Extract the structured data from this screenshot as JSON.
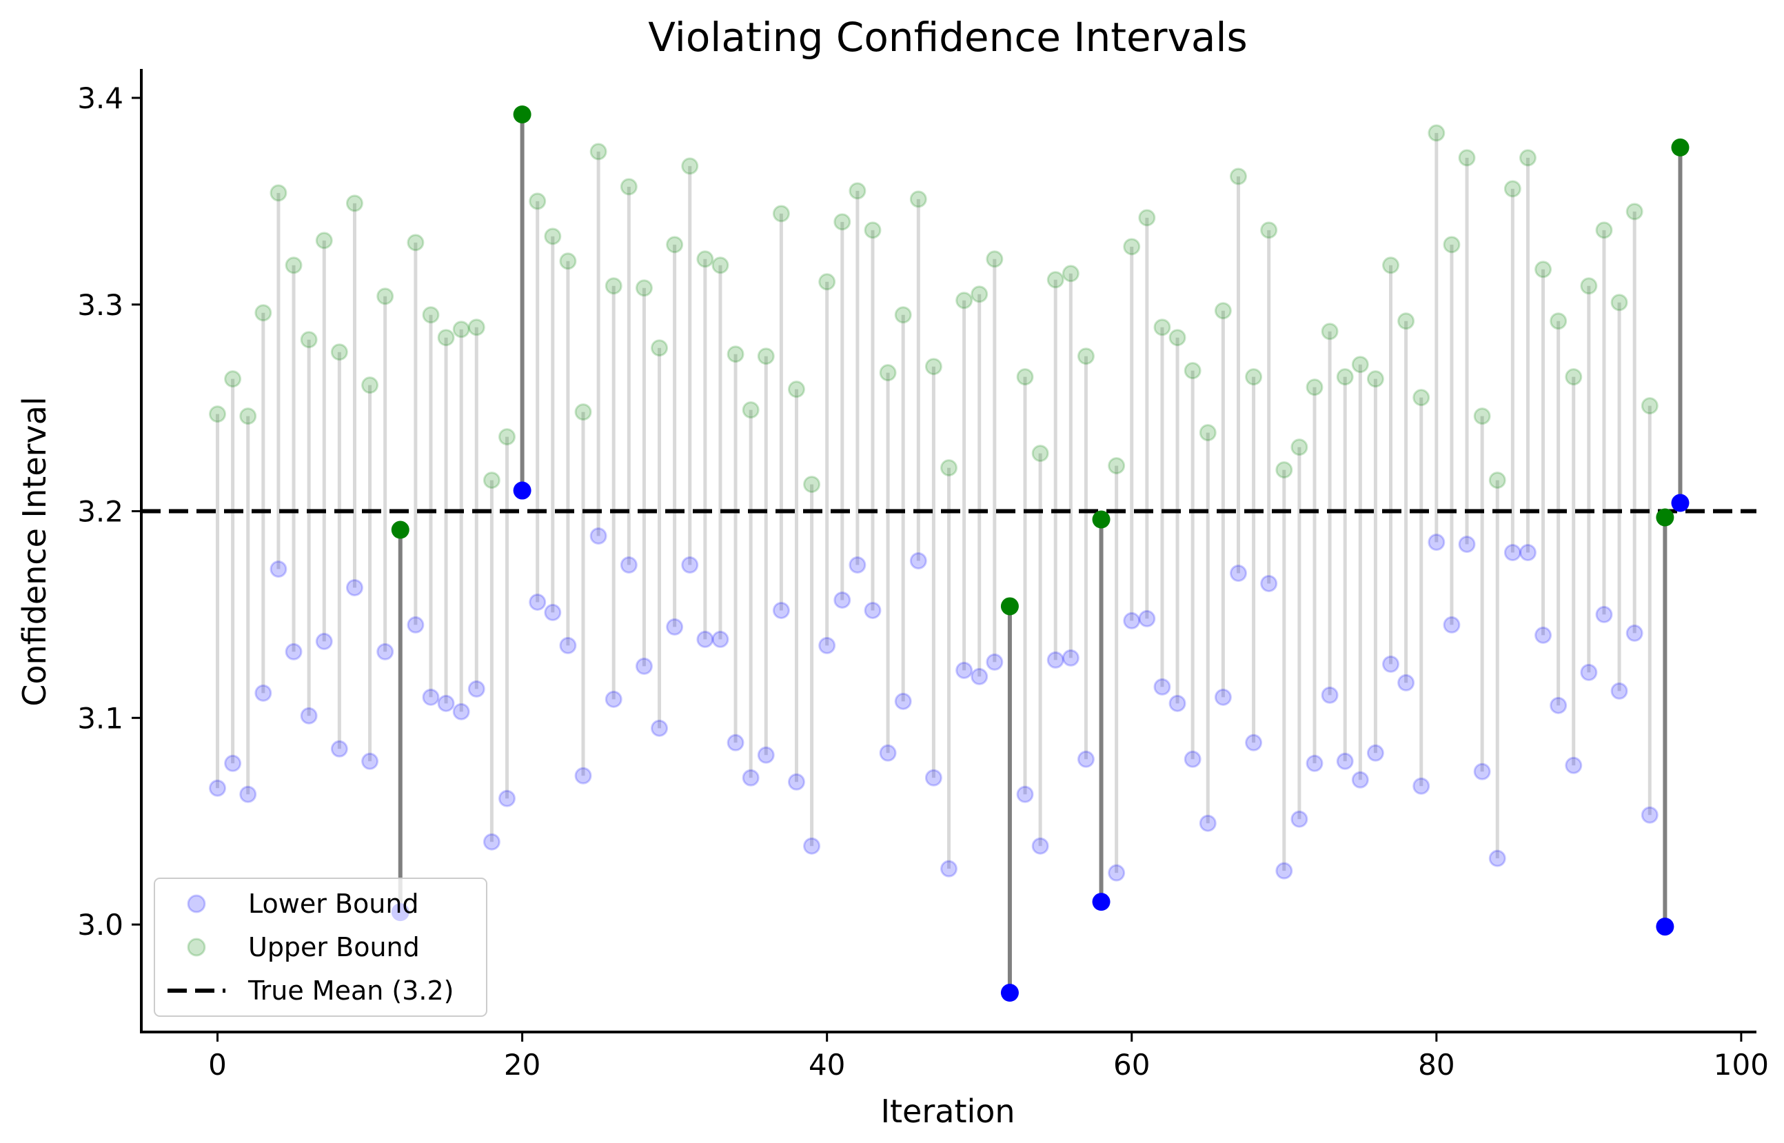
{
  "chart_data": {
    "type": "scatter",
    "title": "Violating Confidence Intervals",
    "xlabel": "Iteration",
    "ylabel": "Confidence Interval",
    "xlim": [
      -5,
      101
    ],
    "ylim": [
      2.948,
      3.414
    ],
    "xticks": [
      0,
      20,
      40,
      60,
      80,
      100
    ],
    "xtick_labels": [
      "0",
      "20",
      "40",
      "60",
      "80",
      "100"
    ],
    "yticks": [
      3.0,
      3.1,
      3.2,
      3.3,
      3.4
    ],
    "ytick_labels": [
      "3.0",
      "3.1",
      "3.2",
      "3.3",
      "3.4"
    ],
    "true_mean": 3.2,
    "grid": false,
    "legend_position": "lower-left",
    "legend": {
      "lower": "Lower Bound",
      "upper": "Upper Bound",
      "mean": "True Mean (3.2)"
    },
    "colors": {
      "lower": "#0000ff",
      "upper": "#008000",
      "mean_line": "#000000",
      "ok_interval": "#d9d9d9",
      "violating_interval": "#808080"
    },
    "violating_iterations": [
      12,
      20,
      52,
      58,
      95,
      96
    ],
    "lower_bounds": [
      3.066,
      3.078,
      3.063,
      3.112,
      3.172,
      3.132,
      3.101,
      3.137,
      3.085,
      3.163,
      3.079,
      3.132,
      3.006,
      3.145,
      3.11,
      3.107,
      3.103,
      3.114,
      3.04,
      3.061,
      3.21,
      3.156,
      3.151,
      3.135,
      3.072,
      3.188,
      3.109,
      3.174,
      3.125,
      3.095,
      3.144,
      3.174,
      3.138,
      3.138,
      3.088,
      3.071,
      3.082,
      3.152,
      3.069,
      3.038,
      3.135,
      3.157,
      3.174,
      3.152,
      3.083,
      3.108,
      3.176,
      3.071,
      3.027,
      3.123,
      3.12,
      3.127,
      2.967,
      3.063,
      3.038,
      3.128,
      3.129,
      3.08,
      3.011,
      3.025,
      3.147,
      3.148,
      3.115,
      3.107,
      3.08,
      3.049,
      3.11,
      3.17,
      3.088,
      3.165,
      3.026,
      3.051,
      3.078,
      3.111,
      3.079,
      3.07,
      3.083,
      3.126,
      3.117,
      3.067,
      3.185,
      3.145,
      3.184,
      3.074,
      3.032,
      3.18,
      3.18,
      3.14,
      3.106,
      3.077,
      3.122,
      3.15,
      3.113,
      3.141,
      3.053,
      2.999,
      3.204
    ],
    "upper_bounds": [
      3.247,
      3.264,
      3.246,
      3.296,
      3.354,
      3.319,
      3.283,
      3.331,
      3.277,
      3.349,
      3.261,
      3.304,
      3.191,
      3.33,
      3.295,
      3.284,
      3.288,
      3.289,
      3.215,
      3.236,
      3.392,
      3.35,
      3.333,
      3.321,
      3.248,
      3.374,
      3.309,
      3.357,
      3.308,
      3.279,
      3.329,
      3.367,
      3.322,
      3.319,
      3.276,
      3.249,
      3.275,
      3.344,
      3.259,
      3.213,
      3.311,
      3.34,
      3.355,
      3.336,
      3.267,
      3.295,
      3.351,
      3.27,
      3.221,
      3.302,
      3.305,
      3.322,
      3.154,
      3.265,
      3.228,
      3.312,
      3.315,
      3.275,
      3.196,
      3.222,
      3.328,
      3.342,
      3.289,
      3.284,
      3.268,
      3.238,
      3.297,
      3.362,
      3.265,
      3.336,
      3.22,
      3.231,
      3.26,
      3.287,
      3.265,
      3.271,
      3.264,
      3.319,
      3.292,
      3.255,
      3.383,
      3.329,
      3.371,
      3.246,
      3.215,
      3.356,
      3.371,
      3.317,
      3.292,
      3.265,
      3.309,
      3.336,
      3.301,
      3.345,
      3.251,
      3.197,
      3.376
    ]
  }
}
